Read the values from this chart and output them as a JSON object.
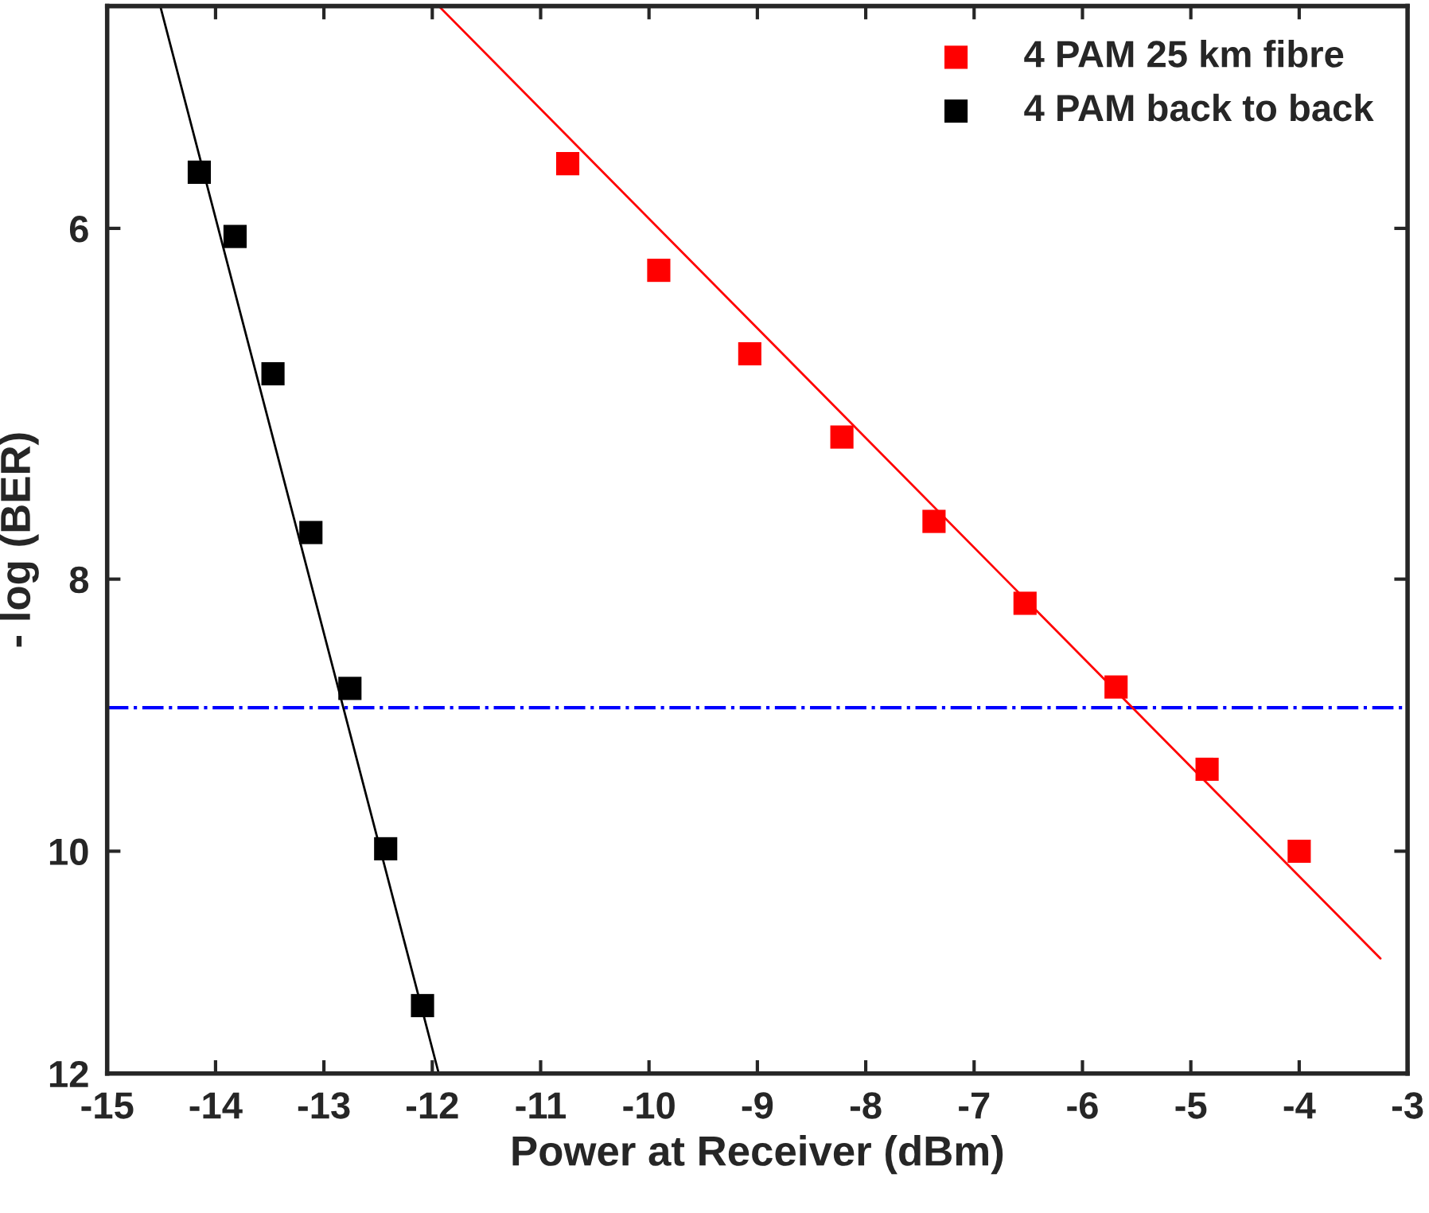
{
  "chart_data": {
    "type": "scatter",
    "xlabel": "Power at Receiver (dBm)",
    "ylabel": "- log (BER)",
    "xlim": [
      -15,
      -3
    ],
    "xticks": [
      -15,
      -14,
      -13,
      -12,
      -11,
      -10,
      -9,
      -8,
      -7,
      -6,
      -5,
      -4,
      -3
    ],
    "log": "y",
    "ylim": [
      12,
      5
    ],
    "yticks": [
      6,
      8,
      10,
      12
    ],
    "marker": "square",
    "legend": "top right",
    "grid": false,
    "series": [
      {
        "name": "4 PAM 25 km fibre",
        "color": "#ff0000",
        "x": [
          -10.75,
          -9.91,
          -9.07,
          -8.22,
          -7.37,
          -6.53,
          -5.69,
          -4.85,
          -4.0
        ],
        "values": [
          5.69,
          6.21,
          6.65,
          7.12,
          7.63,
          8.16,
          8.74,
          9.35,
          10.0
        ]
      },
      {
        "name": "4 PAM back to back",
        "color": "#000000",
        "x": [
          -14.15,
          -13.82,
          -13.47,
          -13.12,
          -12.76,
          -12.43,
          -12.09
        ],
        "values": [
          5.73,
          6.04,
          6.76,
          7.7,
          8.75,
          9.98,
          11.35
        ]
      },
      {
        "type": "line",
        "marker": "none",
        "color": "#ff0000",
        "x": [
          -11.94,
          -3.25
        ],
        "values": [
          5,
          10.92
        ]
      },
      {
        "type": "line",
        "marker": "none",
        "color": "#000000",
        "x": [
          -14.51,
          -11.94
        ],
        "values": [
          5,
          12
        ]
      }
    ],
    "ref_lines": [
      {
        "axis": "y",
        "value": 8.89,
        "color": "#0000ff",
        "line_style": "dashdot"
      }
    ]
  }
}
